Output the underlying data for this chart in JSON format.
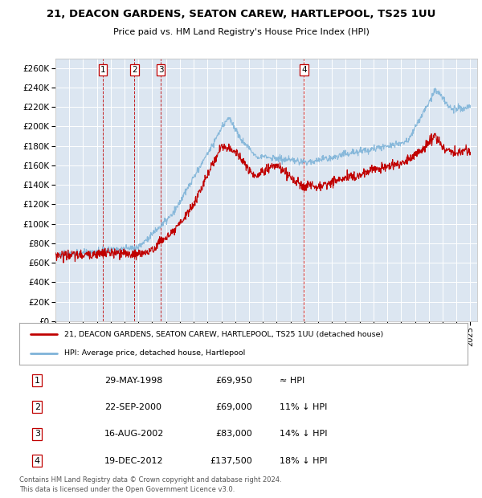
{
  "title": "21, DEACON GARDENS, SEATON CAREW, HARTLEPOOL, TS25 1UU",
  "subtitle": "Price paid vs. HM Land Registry's House Price Index (HPI)",
  "ylim": [
    0,
    270000
  ],
  "yticks": [
    0,
    20000,
    40000,
    60000,
    80000,
    100000,
    120000,
    140000,
    160000,
    180000,
    200000,
    220000,
    240000,
    260000
  ],
  "background_color": "#dce6f1",
  "fig_background": "#ffffff",
  "grid_color": "#ffffff",
  "hpi_color": "#7eb3d8",
  "price_color": "#c00000",
  "sale_points": [
    {
      "date_num": 1998.41,
      "price": 69950,
      "label": "1"
    },
    {
      "date_num": 2000.72,
      "price": 69000,
      "label": "2"
    },
    {
      "date_num": 2002.62,
      "price": 83000,
      "label": "3"
    },
    {
      "date_num": 2012.97,
      "price": 137500,
      "label": "4"
    }
  ],
  "legend_price_label": "21, DEACON GARDENS, SEATON CAREW, HARTLEPOOL, TS25 1UU (detached house)",
  "legend_hpi_label": "HPI: Average price, detached house, Hartlepool",
  "table_rows": [
    {
      "num": "1",
      "date": "29-MAY-1998",
      "price": "£69,950",
      "relation": "≈ HPI"
    },
    {
      "num": "2",
      "date": "22-SEP-2000",
      "price": "£69,000",
      "relation": "11% ↓ HPI"
    },
    {
      "num": "3",
      "date": "16-AUG-2002",
      "price": "£83,000",
      "relation": "14% ↓ HPI"
    },
    {
      "num": "4",
      "date": "19-DEC-2012",
      "price": "£137,500",
      "relation": "18% ↓ HPI"
    }
  ],
  "footer": "Contains HM Land Registry data © Crown copyright and database right 2024.\nThis data is licensed under the Open Government Licence v3.0.",
  "xmin": 1995.0,
  "xmax": 2025.5,
  "hpi_trajectory": [
    [
      1995.0,
      68000
    ],
    [
      1997.0,
      70000
    ],
    [
      2001.0,
      76000
    ],
    [
      2003.5,
      110000
    ],
    [
      2007.5,
      210000
    ],
    [
      2008.5,
      185000
    ],
    [
      2009.5,
      170000
    ],
    [
      2012.0,
      165000
    ],
    [
      2013.0,
      163000
    ],
    [
      2015.0,
      168000
    ],
    [
      2016.0,
      172000
    ],
    [
      2019.0,
      180000
    ],
    [
      2020.5,
      185000
    ],
    [
      2022.5,
      238000
    ],
    [
      2023.5,
      220000
    ],
    [
      2024.5,
      218000
    ],
    [
      2025.0,
      220000
    ]
  ],
  "price_trajectory": [
    [
      1995.0,
      68000
    ],
    [
      1997.0,
      68000
    ],
    [
      1998.4,
      70000
    ],
    [
      2000.72,
      69000
    ],
    [
      2002.0,
      72000
    ],
    [
      2002.62,
      83000
    ],
    [
      2003.5,
      90000
    ],
    [
      2005.0,
      120000
    ],
    [
      2007.0,
      180000
    ],
    [
      2008.0,
      175000
    ],
    [
      2009.0,
      155000
    ],
    [
      2009.5,
      148000
    ],
    [
      2010.0,
      155000
    ],
    [
      2011.0,
      160000
    ],
    [
      2012.0,
      148000
    ],
    [
      2012.97,
      137500
    ],
    [
      2013.5,
      140000
    ],
    [
      2014.0,
      138000
    ],
    [
      2015.0,
      143000
    ],
    [
      2016.0,
      148000
    ],
    [
      2017.0,
      150000
    ],
    [
      2018.0,
      157000
    ],
    [
      2019.0,
      158000
    ],
    [
      2020.0,
      162000
    ],
    [
      2021.0,
      170000
    ],
    [
      2022.0,
      183000
    ],
    [
      2022.5,
      190000
    ],
    [
      2023.0,
      178000
    ],
    [
      2023.5,
      175000
    ],
    [
      2024.0,
      173000
    ],
    [
      2024.5,
      175000
    ],
    [
      2025.0,
      174000
    ]
  ]
}
